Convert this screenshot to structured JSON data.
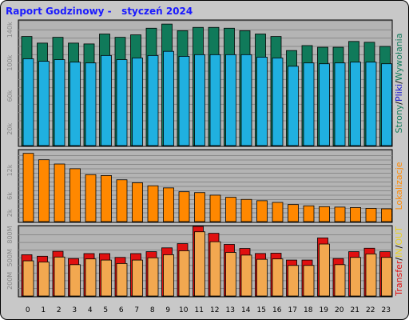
{
  "title": "Raport Godzinowy -   styczeń 2024",
  "colors": {
    "background": "#c8c8c8",
    "plot_bg": "#b4b4b4",
    "strony": "#107a5a",
    "pliki": "#20b0e0",
    "wizyty": "#1010d0",
    "lokalizacje": "#ff8800",
    "transfer": "#e01010",
    "in": "#f2a850",
    "out": "#e8d020"
  },
  "chart_data": [
    {
      "type": "bar",
      "categories": [
        "0",
        "1",
        "2",
        "3",
        "4",
        "5",
        "6",
        "7",
        "8",
        "9",
        "10",
        "11",
        "12",
        "13",
        "14",
        "15",
        "16",
        "17",
        "18",
        "19",
        "20",
        "21",
        "22",
        "23"
      ],
      "ylim": [
        0,
        150000
      ],
      "ytick_labels": [
        "20k",
        "60k",
        "100k",
        "140k"
      ],
      "ytick_values": [
        20000,
        60000,
        100000,
        140000
      ],
      "side_label": "Strony / Pliki / Wywołania",
      "side_parts": [
        "Strony",
        "/",
        "Pliki",
        "/",
        "Wywołania"
      ],
      "series": [
        {
          "name": "Strony",
          "values": [
            132000,
            124000,
            131000,
            124000,
            123000,
            135000,
            131000,
            134000,
            142000,
            147000,
            139000,
            143000,
            143000,
            142000,
            139000,
            135000,
            132000,
            115000,
            121000,
            119000,
            119000,
            126000,
            125000,
            120000
          ]
        },
        {
          "name": "Pliki",
          "values": [
            105000,
            102000,
            104000,
            101000,
            100000,
            109000,
            104000,
            106000,
            109000,
            114000,
            108000,
            110000,
            110000,
            110000,
            110000,
            107000,
            106000,
            96000,
            100000,
            99000,
            100000,
            101000,
            101000,
            99000
          ]
        },
        {
          "name": "Wywołania",
          "values": [
            0,
            0,
            0,
            0,
            0,
            0,
            0,
            0,
            0,
            0,
            0,
            0,
            0,
            0,
            0,
            0,
            0,
            0,
            0,
            0,
            0,
            0,
            0,
            0
          ]
        }
      ]
    },
    {
      "type": "bar",
      "categories": [
        "0",
        "1",
        "2",
        "3",
        "4",
        "5",
        "6",
        "7",
        "8",
        "9",
        "10",
        "11",
        "12",
        "13",
        "14",
        "15",
        "16",
        "17",
        "18",
        "19",
        "20",
        "21",
        "22",
        "23"
      ],
      "ylim": [
        0,
        16500
      ],
      "ytick_labels": [
        "2k",
        "6k",
        "12k"
      ],
      "ytick_values": [
        2000,
        6000,
        12000
      ],
      "side_label": "Lokalizacje",
      "series": [
        {
          "name": "Lokalizacje",
          "values": [
            16000,
            14500,
            13500,
            12400,
            11000,
            10800,
            9800,
            9100,
            8400,
            7900,
            7000,
            6800,
            6200,
            5700,
            5200,
            4900,
            4500,
            4000,
            3700,
            3500,
            3400,
            3300,
            3100,
            3000
          ]
        }
      ]
    },
    {
      "type": "bar",
      "categories": [
        "0",
        "1",
        "2",
        "3",
        "4",
        "5",
        "6",
        "7",
        "8",
        "9",
        "10",
        "11",
        "12",
        "13",
        "14",
        "15",
        "16",
        "17",
        "18",
        "19",
        "20",
        "21",
        "22",
        "23"
      ],
      "ylim": [
        0,
        900
      ],
      "ytick_labels": [
        "200M",
        "500M",
        "800M"
      ],
      "ytick_values": [
        200,
        500,
        800
      ],
      "side_label": "Transfer / IN / OUT",
      "side_parts": [
        "Transfer",
        "/",
        "IN",
        "/",
        "OUT"
      ],
      "series": [
        {
          "name": "Transfer",
          "values": [
            540,
            520,
            585,
            490,
            555,
            555,
            505,
            555,
            580,
            630,
            685,
            910,
            820,
            675,
            622,
            556,
            560,
            470,
            470,
            760,
            490,
            580,
            625,
            580
          ]
        },
        {
          "name": "IN",
          "values": [
            460,
            445,
            510,
            410,
            485,
            470,
            425,
            470,
            500,
            540,
            592,
            840,
            710,
            570,
            535,
            480,
            485,
            400,
            400,
            680,
            410,
            505,
            550,
            505
          ]
        },
        {
          "name": "OUT",
          "values": [
            0,
            0,
            0,
            0,
            0,
            0,
            0,
            0,
            0,
            0,
            0,
            0,
            0,
            0,
            0,
            0,
            0,
            0,
            0,
            0,
            0,
            0,
            0,
            0
          ]
        }
      ]
    }
  ]
}
